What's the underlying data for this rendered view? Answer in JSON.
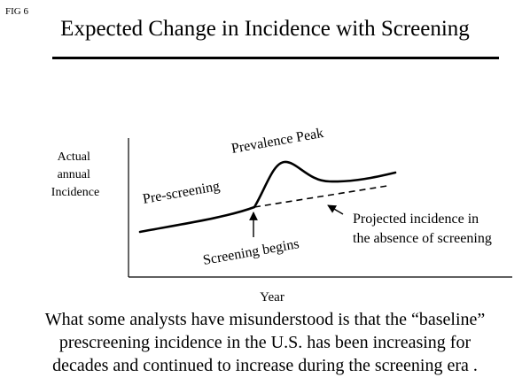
{
  "figure_label": "FIG 6",
  "title": "Expected Change in Incidence with Screening",
  "diagram": {
    "y_axis_label": [
      "Actual",
      "annual",
      "Incidence"
    ],
    "x_axis_label": "Year",
    "annotations": {
      "prevalence_peak": "Prevalence Peak",
      "pre_screening": "Pre-screening",
      "screening_begins": "Screening begins",
      "projected": [
        "Projected incidence in",
        "the absence of screening"
      ]
    }
  },
  "caption": [
    "What some analysts have misunderstood is that the “baseline”",
    "prescreening incidence in the U.S. has been increasing for",
    "decades and continued to increase during the screening era ."
  ]
}
